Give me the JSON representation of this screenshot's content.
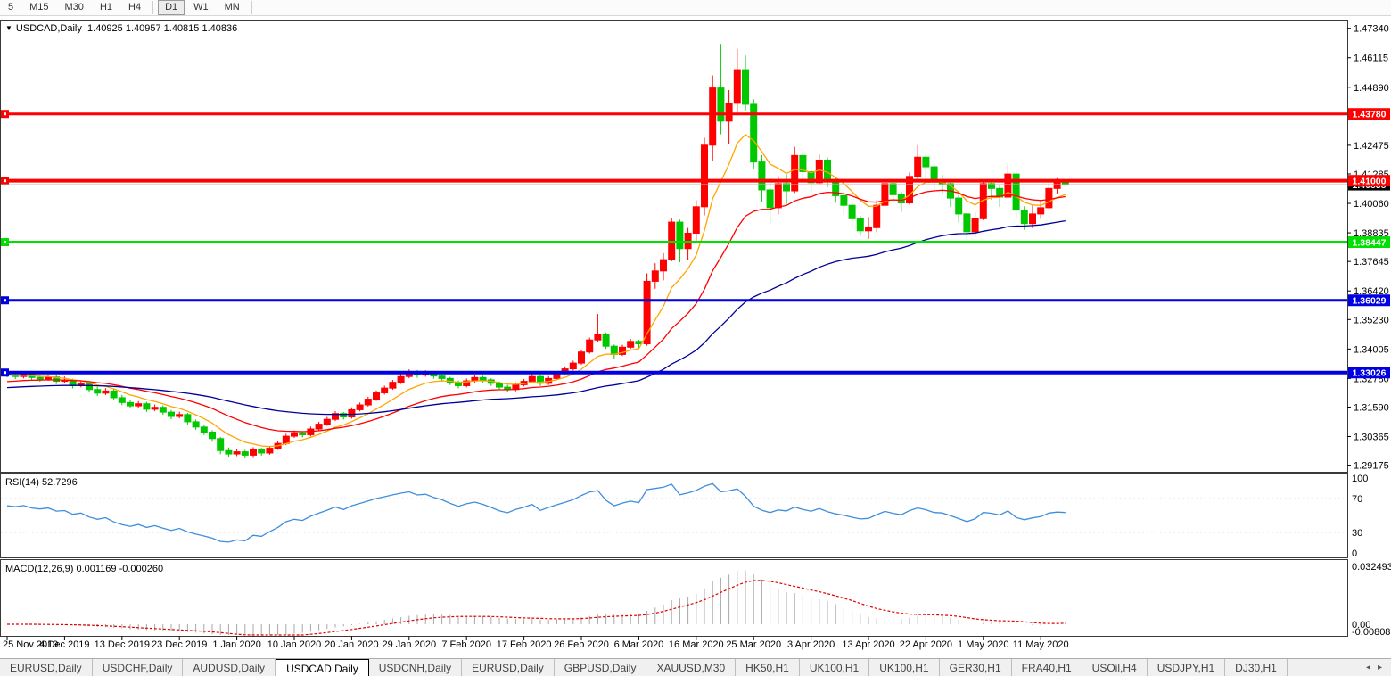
{
  "toolbar": {
    "timeframes": [
      {
        "label": "5",
        "active": false
      },
      {
        "label": "M15",
        "active": false
      },
      {
        "label": "M30",
        "active": false
      },
      {
        "label": "H1",
        "active": false
      },
      {
        "label": "H4",
        "active": false
      },
      {
        "label": "D1",
        "active": true
      },
      {
        "label": "W1",
        "active": false
      },
      {
        "label": "MN",
        "active": false
      }
    ]
  },
  "chart": {
    "title": "USDCAD,Daily",
    "ohlc_text": "1.40925 1.40957 1.40815 1.40836"
  },
  "indicators": {
    "rsi_label": "RSI(14) 52.7296",
    "macd_label": "MACD(12,26,9) 0.001169 -0.000260"
  },
  "chart_data": {
    "type": "candlestick",
    "symbol": "USDCAD",
    "timeframe": "Daily",
    "current_bar": {
      "open": 1.40925,
      "high": 1.40957,
      "low": 1.40815,
      "close": 1.40836
    },
    "x_labels": [
      "25 Nov 2019",
      "4 Dec 2019",
      "13 Dec 2019",
      "23 Dec 2019",
      "1 Jan 2020",
      "10 Jan 2020",
      "20 Jan 2020",
      "29 Jan 2020",
      "7 Feb 2020",
      "17 Feb 2020",
      "26 Feb 2020",
      "6 Mar 2020",
      "16 Mar 2020",
      "25 Mar 2020",
      "3 Apr 2020",
      "13 Apr 2020",
      "22 Apr 2020",
      "1 May 2020",
      "11 May 2020"
    ],
    "label_every": 7,
    "scale": {
      "p_top": 1.477,
      "p_bottom": 1.289
    },
    "y_axis_ticks": [
      1.4734,
      1.46115,
      1.4489,
      1.42475,
      1.41285,
      1.4006,
      1.38835,
      1.37645,
      1.3642,
      1.3523,
      1.34005,
      1.3278,
      1.3159,
      1.30365,
      1.29175
    ],
    "colors": {
      "up": "#ff0000",
      "down": "#00c800",
      "ma_fast": "#ffa500",
      "ma_mid": "#ff0000",
      "ma_slow": "#000099",
      "rsi": "#3e8ede",
      "macd_hist": "#a8a8a8",
      "macd_signal": "#e00000",
      "bid_line": "#b8b8b8",
      "level_gray": "#c8c8c8"
    },
    "hlines": [
      {
        "price": 1.4378,
        "color": "#ff0000",
        "width": 3,
        "label": "1.43780"
      },
      {
        "price": 1.41,
        "color": "#ff0000",
        "width": 4,
        "label": "1.41000"
      },
      {
        "price": 1.38447,
        "color": "#00e000",
        "width": 3,
        "label": "1.38447"
      },
      {
        "price": 1.36029,
        "color": "#0000e0",
        "width": 3,
        "label": "1.36029"
      },
      {
        "price": 1.33026,
        "color": "#0000e0",
        "width": 4,
        "label": "1.33026"
      }
    ],
    "current_price": {
      "price": 1.40838,
      "label": "1.40838",
      "badge_color": "#000000"
    },
    "mas": [
      {
        "period": 8,
        "color": "#ffa500",
        "seed": null
      },
      {
        "period": 21,
        "color": "#ff0000",
        "seed": 1.3262
      },
      {
        "period": 55,
        "color": "#000099",
        "seed": 1.3238
      }
    ],
    "rsi": {
      "period": 14,
      "value": 52.7296,
      "levels": [
        70,
        30
      ],
      "axis_labels": [
        100,
        70,
        30,
        0
      ],
      "seed_gain": 0.0016,
      "seed_loss": 0.001
    },
    "macd": {
      "fast": 12,
      "slow": 26,
      "signal": 9,
      "main": 0.001169,
      "signal_value": -0.00026,
      "axis_labels": [
        {
          "v": 0.032493,
          "label": "0.032493"
        },
        {
          "v": 0,
          "label": "0.00"
        },
        {
          "v": -0.008086,
          "label": "-0.008086"
        }
      ]
    },
    "bars": [
      [
        1.33,
        1.331,
        1.3282,
        1.3292
      ],
      [
        1.3292,
        1.33,
        1.3275,
        1.3286
      ],
      [
        1.3286,
        1.3306,
        1.3278,
        1.3297
      ],
      [
        1.3297,
        1.3305,
        1.3272,
        1.3282
      ],
      [
        1.3282,
        1.3294,
        1.3265,
        1.3276
      ],
      [
        1.3276,
        1.3294,
        1.3268,
        1.3284
      ],
      [
        1.3284,
        1.3291,
        1.3255,
        1.3266
      ],
      [
        1.3266,
        1.3286,
        1.3257,
        1.327
      ],
      [
        1.327,
        1.3277,
        1.3237,
        1.3248
      ],
      [
        1.3248,
        1.3268,
        1.3241,
        1.3256
      ],
      [
        1.3256,
        1.3263,
        1.3221,
        1.3232
      ],
      [
        1.3232,
        1.3243,
        1.3205,
        1.3217
      ],
      [
        1.3217,
        1.3238,
        1.3209,
        1.3226
      ],
      [
        1.3226,
        1.3233,
        1.3187,
        1.3198
      ],
      [
        1.3198,
        1.3209,
        1.3167,
        1.3178
      ],
      [
        1.3178,
        1.3189,
        1.3153,
        1.3164
      ],
      [
        1.3164,
        1.3184,
        1.3156,
        1.3173
      ],
      [
        1.3173,
        1.3181,
        1.3139,
        1.315
      ],
      [
        1.315,
        1.317,
        1.3142,
        1.3158
      ],
      [
        1.3158,
        1.3166,
        1.3127,
        1.3138
      ],
      [
        1.3138,
        1.3147,
        1.3109,
        1.312
      ],
      [
        1.312,
        1.314,
        1.3112,
        1.3128
      ],
      [
        1.3128,
        1.3135,
        1.3087,
        1.3098
      ],
      [
        1.3098,
        1.3107,
        1.3065,
        1.3076
      ],
      [
        1.3076,
        1.3085,
        1.3043,
        1.3055
      ],
      [
        1.3055,
        1.3063,
        1.3015,
        1.3028
      ],
      [
        1.3028,
        1.3035,
        1.2963,
        1.2978
      ],
      [
        1.2978,
        1.2991,
        1.2953,
        1.2964
      ],
      [
        1.2964,
        1.2984,
        1.2955,
        1.2973
      ],
      [
        1.2973,
        1.2981,
        1.2949,
        1.2959
      ],
      [
        1.2959,
        1.2992,
        1.2951,
        1.2982
      ],
      [
        1.2982,
        1.2989,
        1.2957,
        1.2968
      ],
      [
        1.2968,
        1.2998,
        1.2961,
        1.2988
      ],
      [
        1.2988,
        1.3018,
        1.2981,
        1.3008
      ],
      [
        1.3008,
        1.3048,
        1.3001,
        1.3038
      ],
      [
        1.3038,
        1.3062,
        1.3031,
        1.3052
      ],
      [
        1.3052,
        1.3059,
        1.3033,
        1.3044
      ],
      [
        1.3044,
        1.3078,
        1.3037,
        1.3068
      ],
      [
        1.3068,
        1.3098,
        1.3061,
        1.3088
      ],
      [
        1.3088,
        1.3118,
        1.3081,
        1.3108
      ],
      [
        1.3108,
        1.3142,
        1.3101,
        1.3132
      ],
      [
        1.3132,
        1.3139,
        1.3107,
        1.3118
      ],
      [
        1.3118,
        1.3158,
        1.3111,
        1.3148
      ],
      [
        1.3148,
        1.3178,
        1.3141,
        1.3168
      ],
      [
        1.3168,
        1.3202,
        1.3161,
        1.3192
      ],
      [
        1.3192,
        1.3228,
        1.3185,
        1.3218
      ],
      [
        1.3218,
        1.3248,
        1.3211,
        1.3238
      ],
      [
        1.3238,
        1.3272,
        1.3231,
        1.3262
      ],
      [
        1.3262,
        1.3296,
        1.3255,
        1.3286
      ],
      [
        1.3286,
        1.3316,
        1.3279,
        1.3306
      ],
      [
        1.3306,
        1.3313,
        1.3281,
        1.3292
      ],
      [
        1.3292,
        1.3312,
        1.3285,
        1.3302
      ],
      [
        1.3302,
        1.3309,
        1.3277,
        1.3288
      ],
      [
        1.3288,
        1.3295,
        1.3267,
        1.3278
      ],
      [
        1.3278,
        1.3285,
        1.3251,
        1.3262
      ],
      [
        1.3262,
        1.3269,
        1.3237,
        1.3248
      ],
      [
        1.3248,
        1.3278,
        1.3241,
        1.3268
      ],
      [
        1.3268,
        1.3292,
        1.3261,
        1.3282
      ],
      [
        1.3282,
        1.3289,
        1.3261,
        1.3272
      ],
      [
        1.3272,
        1.3279,
        1.3247,
        1.3258
      ],
      [
        1.3258,
        1.3265,
        1.3231,
        1.3242
      ],
      [
        1.3242,
        1.3251,
        1.3221,
        1.3232
      ],
      [
        1.3232,
        1.3262,
        1.3225,
        1.3252
      ],
      [
        1.3252,
        1.3276,
        1.3245,
        1.3266
      ],
      [
        1.3266,
        1.3296,
        1.3259,
        1.3286
      ],
      [
        1.3286,
        1.3293,
        1.3247,
        1.3258
      ],
      [
        1.3258,
        1.3288,
        1.3251,
        1.3278
      ],
      [
        1.3278,
        1.3308,
        1.3271,
        1.3298
      ],
      [
        1.3298,
        1.3328,
        1.3291,
        1.3318
      ],
      [
        1.3318,
        1.3352,
        1.3311,
        1.3342
      ],
      [
        1.3342,
        1.3398,
        1.3335,
        1.3388
      ],
      [
        1.3388,
        1.3448,
        1.3381,
        1.3438
      ],
      [
        1.3438,
        1.3546,
        1.3431,
        1.3462
      ],
      [
        1.3462,
        1.3469,
        1.3401,
        1.3412
      ],
      [
        1.3412,
        1.3419,
        1.3361,
        1.3378
      ],
      [
        1.3378,
        1.3418,
        1.3371,
        1.3408
      ],
      [
        1.3408,
        1.3442,
        1.3401,
        1.3432
      ],
      [
        1.3432,
        1.3439,
        1.3403,
        1.3422
      ],
      [
        1.3422,
        1.3715,
        1.3414,
        1.3682
      ],
      [
        1.3682,
        1.3757,
        1.3651,
        1.3725
      ],
      [
        1.3725,
        1.3799,
        1.3686,
        1.3772
      ],
      [
        1.3772,
        1.3944,
        1.3765,
        1.3928
      ],
      [
        1.3928,
        1.3938,
        1.3761,
        1.3818
      ],
      [
        1.3818,
        1.3904,
        1.3771,
        1.3882
      ],
      [
        1.3882,
        1.4019,
        1.3851,
        1.3992
      ],
      [
        1.3992,
        1.4279,
        1.3956,
        1.4248
      ],
      [
        1.4248,
        1.4538,
        1.4183,
        1.4486
      ],
      [
        1.4486,
        1.4669,
        1.4293,
        1.4348
      ],
      [
        1.4348,
        1.4477,
        1.4251,
        1.4422
      ],
      [
        1.4422,
        1.4648,
        1.4371,
        1.4562
      ],
      [
        1.4562,
        1.4621,
        1.4391,
        1.4418
      ],
      [
        1.4418,
        1.4439,
        1.4151,
        1.4178
      ],
      [
        1.4178,
        1.4207,
        1.4011,
        1.4062
      ],
      [
        1.4062,
        1.4109,
        1.3921,
        1.3988
      ],
      [
        1.3988,
        1.4119,
        1.3961,
        1.4088
      ],
      [
        1.4088,
        1.4127,
        1.4001,
        1.4058
      ],
      [
        1.4058,
        1.4241,
        1.4049,
        1.4205
      ],
      [
        1.4205,
        1.4227,
        1.4091,
        1.4138
      ],
      [
        1.4138,
        1.4149,
        1.4053,
        1.4092
      ],
      [
        1.4092,
        1.4209,
        1.4085,
        1.4186
      ],
      [
        1.4186,
        1.4197,
        1.4073,
        1.4102
      ],
      [
        1.4102,
        1.4111,
        1.4009,
        1.4038
      ],
      [
        1.4038,
        1.4059,
        1.3961,
        1.3998
      ],
      [
        1.3998,
        1.4009,
        1.3906,
        1.3942
      ],
      [
        1.3942,
        1.3954,
        1.3871,
        1.3892
      ],
      [
        1.3892,
        1.3949,
        1.3858,
        1.3905
      ],
      [
        1.3905,
        1.4019,
        1.3886,
        1.3998
      ],
      [
        1.3998,
        1.4109,
        1.3991,
        1.4088
      ],
      [
        1.4088,
        1.4104,
        1.4006,
        1.4042
      ],
      [
        1.4042,
        1.4054,
        1.3971,
        1.4008
      ],
      [
        1.4008,
        1.4134,
        1.4001,
        1.4118
      ],
      [
        1.4118,
        1.4248,
        1.4101,
        1.4198
      ],
      [
        1.4198,
        1.4209,
        1.4106,
        1.4158
      ],
      [
        1.4158,
        1.4169,
        1.4061,
        1.4098
      ],
      [
        1.4098,
        1.4124,
        1.4049,
        1.4088
      ],
      [
        1.4088,
        1.4099,
        1.3991,
        1.4028
      ],
      [
        1.4028,
        1.4041,
        1.3926,
        1.3962
      ],
      [
        1.3962,
        1.3974,
        1.3852,
        1.3888
      ],
      [
        1.3888,
        1.3969,
        1.3866,
        1.3942
      ],
      [
        1.3942,
        1.4101,
        1.3936,
        1.4088
      ],
      [
        1.4088,
        1.4104,
        1.4021,
        1.4068
      ],
      [
        1.4068,
        1.4081,
        1.3991,
        1.4032
      ],
      [
        1.4032,
        1.4171,
        1.4026,
        1.4128
      ],
      [
        1.4128,
        1.4139,
        1.3941,
        1.3978
      ],
      [
        1.3978,
        1.3994,
        1.3896,
        1.3922
      ],
      [
        1.3922,
        1.3997,
        1.3903,
        1.3962
      ],
      [
        1.3962,
        1.4021,
        1.3941,
        1.3988
      ],
      [
        1.3988,
        1.4089,
        1.3976,
        1.4068
      ],
      [
        1.4068,
        1.4111,
        1.4046,
        1.4092
      ],
      [
        1.40925,
        1.40957,
        1.40815,
        1.40836
      ]
    ]
  },
  "tabs": {
    "items": [
      {
        "label": "EURUSD,Daily",
        "active": false
      },
      {
        "label": "USDCHF,Daily",
        "active": false
      },
      {
        "label": "AUDUSD,Daily",
        "active": false
      },
      {
        "label": "USDCAD,Daily",
        "active": true
      },
      {
        "label": "USDCNH,Daily",
        "active": false
      },
      {
        "label": "EURUSD,Daily",
        "active": false
      },
      {
        "label": "GBPUSD,Daily",
        "active": false
      },
      {
        "label": "XAUUSD,M30",
        "active": false
      },
      {
        "label": "HK50,H1",
        "active": false
      },
      {
        "label": "UK100,H1",
        "active": false
      },
      {
        "label": "UK100,H1",
        "active": false
      },
      {
        "label": "GER30,H1",
        "active": false
      },
      {
        "label": "FRA40,H1",
        "active": false
      },
      {
        "label": "USOil,H4",
        "active": false
      },
      {
        "label": "USDJPY,H1",
        "active": false
      },
      {
        "label": "DJ30,H1",
        "active": false
      }
    ],
    "scroll_left": "◂",
    "scroll_right": "▸"
  }
}
